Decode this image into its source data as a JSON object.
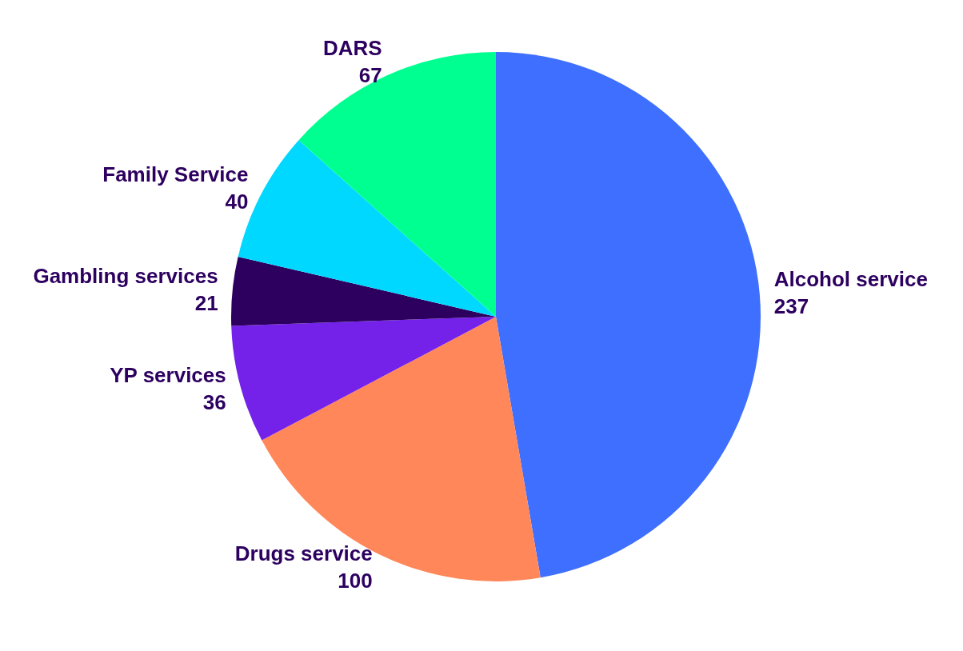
{
  "chart_data": {
    "type": "pie",
    "categories": [
      "Alcohol service",
      "Drugs service",
      "YP services",
      "Gambling services",
      "Family Service",
      "DARS"
    ],
    "values": [
      237,
      100,
      36,
      21,
      40,
      67
    ],
    "colors": [
      "#3f6fff",
      "#ff8759",
      "#7421ea",
      "#2d0060",
      "#00d8ff",
      "#00ff91"
    ],
    "data_labels": true
  }
}
